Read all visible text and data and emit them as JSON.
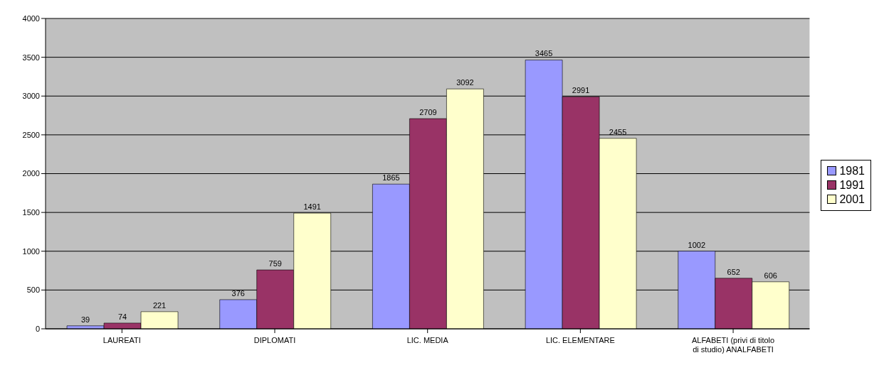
{
  "chart_data": {
    "type": "bar",
    "categories": [
      "LAUREATI",
      "DIPLOMATI",
      "LIC. MEDIA",
      "LIC. ELEMENTARE",
      "ALFABETI (privi di titolo di studio) ANALFABETI"
    ],
    "series": [
      {
        "name": "1981",
        "color": "#9999ff",
        "values": [
          39,
          376,
          1865,
          3465,
          1002
        ]
      },
      {
        "name": "1991",
        "color": "#993366",
        "values": [
          74,
          759,
          2709,
          2991,
          652
        ]
      },
      {
        "name": "2001",
        "color": "#ffffcc",
        "values": [
          221,
          1491,
          3092,
          2455,
          606
        ]
      }
    ],
    "ylim": [
      0,
      4000
    ],
    "yticks": [
      0,
      500,
      1000,
      1500,
      2000,
      2500,
      3000,
      3500,
      4000
    ],
    "grid": "y",
    "legend": "right",
    "data_labels": true
  }
}
